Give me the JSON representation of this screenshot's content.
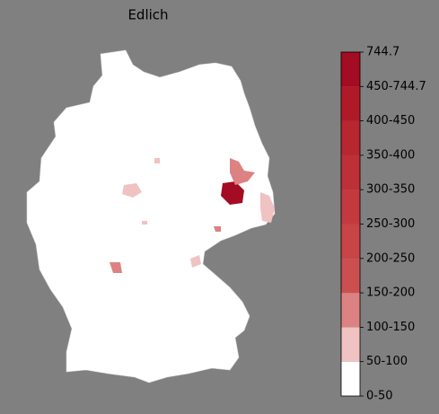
{
  "title": "Edlich",
  "colorbar": {
    "labels": [
      "0-50",
      "50-100",
      "100-150",
      "150-200",
      "200-250",
      "250-300",
      "300-350",
      "350-400",
      "400-450",
      "450-744.7",
      "744.7"
    ],
    "colors": [
      "#ffffff",
      "#f0c2c2",
      "#dc8282",
      "#cc4f50",
      "#c84446",
      "#c33a3e",
      "#bd3037",
      "#b8262f",
      "#b01a28",
      "#a30c22"
    ]
  }
}
